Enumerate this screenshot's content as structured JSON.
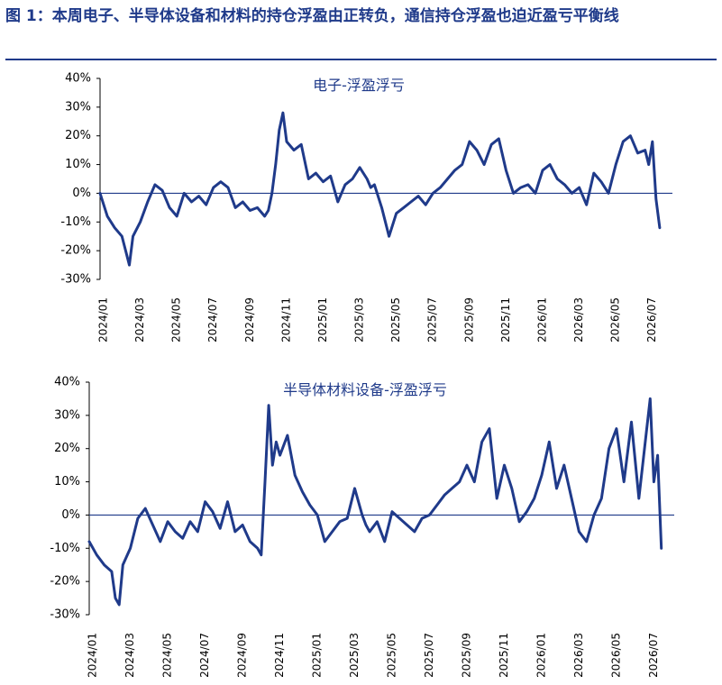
{
  "figure": {
    "title": "图 1：本周电子、半导体设备和材料的持仓浮盈由正转负，通信持仓浮盈也迫近盈亏平衡线",
    "line_color": "#1f3a8a",
    "title_color": "#1f3a8a"
  },
  "chart_data": [
    {
      "type": "line",
      "title": "电子-浮盈浮亏",
      "xlabel": "",
      "ylabel": "",
      "ylim": [
        -30,
        40
      ],
      "yticks": [
        "40%",
        "30%",
        "20%",
        "10%",
        "0%",
        "-10%",
        "-20%",
        "-30%"
      ],
      "yvalues": [
        40,
        30,
        20,
        10,
        0,
        -10,
        -20,
        -30
      ],
      "xlim": [
        0,
        31
      ],
      "xtick_labels": [
        "2024/01",
        "2024/03",
        "2024/05",
        "2024/07",
        "2024/09",
        "2024/11",
        "2025/01",
        "2025/03",
        "2025/05",
        "2025/07",
        "2025/09",
        "2025/11",
        "2026/01",
        "2026/03",
        "2026/05",
        "2026/07"
      ],
      "xtick_pos": [
        0,
        2,
        4,
        6,
        8,
        10,
        12,
        14,
        16,
        18,
        20,
        22,
        24,
        26,
        28,
        30
      ],
      "grid": false,
      "series": [
        {
          "x": [
            0,
            0.4,
            0.8,
            1.2,
            1.4,
            1.6,
            1.8,
            2.2,
            2.6,
            3.0,
            3.4,
            3.8,
            4.2,
            4.6,
            5.0,
            5.4,
            5.8,
            6.2,
            6.6,
            7.0,
            7.4,
            7.8,
            8.2,
            8.6,
            9.0,
            9.2,
            9.4,
            9.6,
            9.8,
            10.0,
            10.2,
            10.6,
            11.0,
            11.4,
            11.8,
            12.2,
            12.6,
            13.0,
            13.4,
            13.8,
            14.2,
            14.6,
            14.8,
            15.0,
            15.4,
            15.8,
            16.2,
            16.6,
            17.0,
            17.4,
            17.8,
            18.2,
            18.6,
            19.0,
            19.4,
            19.8,
            20.2,
            20.6,
            21.0,
            21.4,
            21.8,
            22.2,
            22.6,
            23.0,
            23.4,
            23.8,
            24.2,
            24.6,
            25.0,
            25.4,
            25.8,
            26.2,
            26.6,
            27.0,
            27.4,
            27.8,
            28.2,
            28.6,
            29.0,
            29.4,
            29.8,
            30.0,
            30.2,
            30.4,
            30.6
          ],
          "y": [
            0,
            -8,
            -12,
            -15,
            -20,
            -25,
            -15,
            -10,
            -3,
            3,
            1,
            -5,
            -8,
            0,
            -3,
            -1,
            -4,
            2,
            4,
            2,
            -5,
            -3,
            -6,
            -5,
            -8,
            -6,
            0,
            10,
            22,
            28,
            18,
            15,
            17,
            5,
            7,
            4,
            6,
            -3,
            3,
            5,
            9,
            5,
            2,
            3,
            -5,
            -15,
            -7,
            -5,
            -3,
            -1,
            -4,
            0,
            2,
            5,
            8,
            10,
            18,
            15,
            10,
            17,
            19,
            8,
            0,
            2,
            3,
            0,
            8,
            10,
            5,
            3,
            0,
            2,
            -4,
            7,
            4,
            0,
            10,
            18,
            20,
            14,
            15,
            10,
            18,
            -2,
            -12
          ]
        }
      ]
    },
    {
      "type": "line",
      "title": "半导体材料设备-浮盈浮亏",
      "xlabel": "",
      "ylabel": "",
      "ylim": [
        -30,
        40
      ],
      "yticks": [
        "40%",
        "30%",
        "20%",
        "10%",
        "0%",
        "-10%",
        "-20%",
        "-30%"
      ],
      "yvalues": [
        40,
        30,
        20,
        10,
        0,
        -10,
        -20,
        -30
      ],
      "xlim": [
        0,
        31
      ],
      "xtick_labels": [
        "2024/01",
        "2024/03",
        "2024/05",
        "2024/07",
        "2024/09",
        "2024/11",
        "2025/01",
        "2025/03",
        "2025/05",
        "2025/07",
        "2025/09",
        "2025/11",
        "2026/01",
        "2026/03",
        "2026/05",
        "2026/07"
      ],
      "xtick_pos": [
        0,
        2,
        4,
        6,
        8,
        10,
        12,
        14,
        16,
        18,
        20,
        22,
        24,
        26,
        28,
        30
      ],
      "grid": false,
      "series": [
        {
          "x": [
            0,
            0.4,
            0.8,
            1.2,
            1.4,
            1.6,
            1.8,
            2.2,
            2.6,
            3.0,
            3.4,
            3.8,
            4.2,
            4.6,
            5.0,
            5.4,
            5.8,
            6.2,
            6.6,
            7.0,
            7.4,
            7.8,
            8.2,
            8.6,
            9.0,
            9.2,
            9.4,
            9.6,
            9.8,
            10.0,
            10.2,
            10.6,
            11.0,
            11.4,
            11.8,
            12.2,
            12.6,
            13.0,
            13.4,
            13.8,
            14.2,
            14.6,
            14.8,
            15.0,
            15.4,
            15.8,
            16.2,
            16.6,
            17.0,
            17.4,
            17.8,
            18.2,
            18.6,
            19.0,
            19.4,
            19.8,
            20.2,
            20.6,
            21.0,
            21.4,
            21.8,
            22.2,
            22.6,
            23.0,
            23.4,
            23.8,
            24.2,
            24.6,
            25.0,
            25.4,
            25.8,
            26.2,
            26.6,
            27.0,
            27.4,
            27.8,
            28.2,
            28.6,
            29.0,
            29.4,
            29.8,
            30.0,
            30.2,
            30.4,
            30.6
          ],
          "y": [
            -8,
            -12,
            -15,
            -17,
            -25,
            -27,
            -15,
            -10,
            -1,
            2,
            -3,
            -8,
            -2,
            -5,
            -7,
            -2,
            -5,
            4,
            1,
            -4,
            4,
            -5,
            -3,
            -8,
            -10,
            -12,
            10,
            33,
            15,
            22,
            18,
            24,
            12,
            7,
            3,
            0,
            -8,
            -5,
            -2,
            -1,
            8,
            0,
            -3,
            -5,
            -2,
            -8,
            1,
            -1,
            -3,
            -5,
            -1,
            0,
            3,
            6,
            8,
            10,
            15,
            10,
            22,
            26,
            5,
            15,
            8,
            -2,
            1,
            5,
            12,
            22,
            8,
            15,
            5,
            -5,
            -8,
            0,
            5,
            20,
            26,
            10,
            28,
            5,
            25,
            35,
            10,
            18,
            -10
          ]
        }
      ]
    }
  ]
}
